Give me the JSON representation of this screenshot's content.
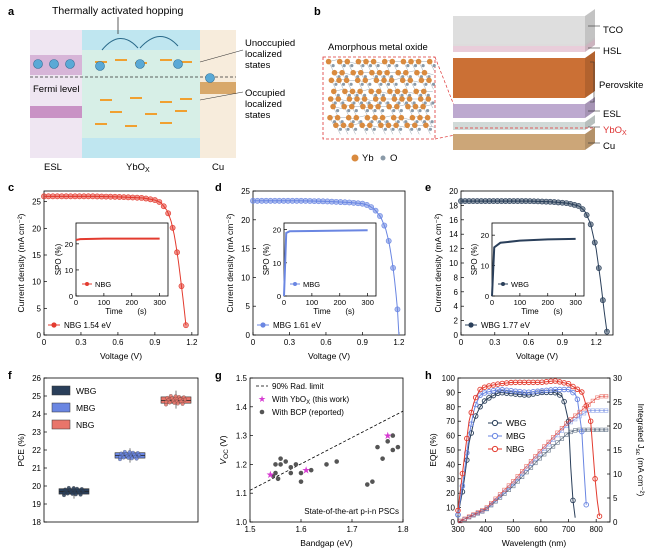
{
  "panel_letters": [
    "a",
    "b",
    "c",
    "d",
    "e",
    "f",
    "g",
    "h"
  ],
  "panel_a": {
    "title": "Thermally activated hopping",
    "label_unoccupied": [
      "Unoccupied",
      "localized",
      "states"
    ],
    "label_occupied": [
      "Occupied",
      "localized",
      "states"
    ],
    "fermi_label": "Fermi level",
    "bottom_labels": [
      "ESL",
      "YbO",
      "X",
      "Cu"
    ],
    "colors": {
      "esl": "#ede3f0",
      "ybo": "#d9eee8",
      "cu": "#f6eadb",
      "electron": "#5aa9d6",
      "state": "#f0a030"
    }
  },
  "panel_b": {
    "inset_title": "Amorphous metal oxide",
    "legend": [
      {
        "label": "Yb",
        "color": "#d98a3e"
      },
      {
        "label": "O",
        "color": "#8a9aa8"
      }
    ],
    "layers": [
      {
        "label": "TCO",
        "color": "#dcdcdc"
      },
      {
        "label": "HSL",
        "color": "#e8cad8"
      },
      {
        "label": "Perovskite",
        "color": "#c8682a"
      },
      {
        "label": "ESL",
        "color": "#b9a4cc"
      },
      {
        "label": "YbO",
        "sub": "X",
        "color": "#cfd8d6"
      },
      {
        "label": "Cu",
        "color": "#c9a171"
      }
    ]
  },
  "chart_data": [
    {
      "panel": "c",
      "type": "line",
      "xlabel": "Voltage (V)",
      "ylabel": "Current density (mA cm⁻²)",
      "xlim": [
        0,
        1.25
      ],
      "ylim": [
        0,
        27
      ],
      "xticks": [
        0,
        0.3,
        0.6,
        0.9,
        1.2
      ],
      "yticks": [
        0,
        5,
        10,
        15,
        20,
        25
      ],
      "series": [
        {
          "name": "NBG 1.54 eV",
          "color": "#e33b2f",
          "x": [
            0,
            0.2,
            0.4,
            0.6,
            0.8,
            0.9,
            0.95,
            1.0,
            1.03,
            1.06,
            1.09,
            1.11,
            1.13,
            1.15,
            1.16
          ],
          "y": [
            26,
            26,
            26,
            25.9,
            25.7,
            25.3,
            24.8,
            23.3,
            21.5,
            18.5,
            14,
            10.3,
            6.5,
            2.3,
            0
          ]
        }
      ],
      "inset": {
        "xlabel": "Time",
        "xunit": "(s)",
        "ylabel": "SPO (%)",
        "xlim": [
          0,
          330
        ],
        "ylim": [
          0,
          28
        ],
        "xticks": [
          0,
          100,
          200,
          300
        ],
        "yticks": [
          0,
          10,
          20
        ],
        "legend": "NBG",
        "x": [
          0,
          15,
          100,
          200,
          300
        ],
        "y": [
          21.5,
          21.8,
          22,
          22,
          22
        ]
      }
    },
    {
      "panel": "d",
      "type": "line",
      "xlabel": "Voltage (V)",
      "ylabel": "Current density (mA cm⁻²)",
      "xlim": [
        0,
        1.25
      ],
      "ylim": [
        0,
        25
      ],
      "xticks": [
        0,
        0.3,
        0.6,
        0.9,
        1.2
      ],
      "yticks": [
        0,
        5,
        10,
        15,
        20,
        25
      ],
      "series": [
        {
          "name": "MBG 1.61 eV",
          "color": "#6a86e2",
          "x": [
            0,
            0.2,
            0.4,
            0.6,
            0.8,
            0.9,
            0.95,
            1.0,
            1.05,
            1.09,
            1.12,
            1.15,
            1.17,
            1.19,
            1.2
          ],
          "y": [
            23.3,
            23.3,
            23.3,
            23.2,
            23,
            22.8,
            22.5,
            21.8,
            20.5,
            18.5,
            16,
            12,
            8.5,
            4,
            0
          ]
        }
      ],
      "inset": {
        "xlabel": "Time",
        "xunit": "(s)",
        "ylabel": "SPO (%)",
        "xlim": [
          0,
          330
        ],
        "ylim": [
          0,
          22
        ],
        "xticks": [
          0,
          100,
          200,
          300
        ],
        "yticks": [
          0,
          10,
          20
        ],
        "legend": "MBG",
        "x": [
          0,
          8,
          20,
          100,
          200,
          300
        ],
        "y": [
          0,
          19,
          19.5,
          19.6,
          19.7,
          19.8
        ]
      }
    },
    {
      "panel": "e",
      "type": "line",
      "xlabel": "Voltage (V)",
      "ylabel": "Current density (mA cm⁻²)",
      "xlim": [
        0,
        1.35
      ],
      "ylim": [
        0,
        20
      ],
      "xticks": [
        0,
        0.3,
        0.6,
        0.9,
        1.2
      ],
      "yticks": [
        0,
        2,
        4,
        6,
        8,
        10,
        12,
        14,
        16,
        18,
        20
      ],
      "series": [
        {
          "name": "WBG 1.77 eV",
          "color": "#2a3f5a",
          "x": [
            0,
            0.2,
            0.4,
            0.6,
            0.8,
            0.95,
            1.05,
            1.1,
            1.15,
            1.2,
            1.24,
            1.27,
            1.3
          ],
          "y": [
            18.6,
            18.6,
            18.6,
            18.6,
            18.5,
            18.3,
            17.9,
            17.2,
            15.5,
            12,
            7.5,
            3.5,
            0
          ]
        }
      ],
      "inset": {
        "xlabel": "Time",
        "xunit": "(s)",
        "ylabel": "SPO (%)",
        "xlim": [
          0,
          330
        ],
        "ylim": [
          0,
          24
        ],
        "xticks": [
          0,
          100,
          200,
          300
        ],
        "yticks": [
          0,
          10,
          20
        ],
        "legend": "WBG",
        "x": [
          0,
          8,
          30,
          100,
          200,
          300
        ],
        "y": [
          0,
          16,
          17.5,
          18.2,
          18.6,
          18.8
        ]
      }
    },
    {
      "panel": "f",
      "type": "box",
      "ylabel": "PCE (%)",
      "ylim": [
        18,
        26
      ],
      "yticks": [
        18,
        19,
        20,
        21,
        22,
        23,
        24,
        25,
        26
      ],
      "legend": [
        "WBG",
        "MBG",
        "NBG"
      ],
      "series": [
        {
          "name": "WBG",
          "color": "#2a3f5a",
          "min": 19.3,
          "q1": 19.55,
          "median": 19.7,
          "q3": 19.85,
          "max": 20.0
        },
        {
          "name": "MBG",
          "color": "#6a86e2",
          "min": 21.3,
          "q1": 21.55,
          "median": 21.7,
          "q3": 21.85,
          "max": 22.1
        },
        {
          "name": "NBG",
          "color": "#e8756a",
          "min": 24.3,
          "q1": 24.6,
          "median": 24.75,
          "q3": 24.95,
          "max": 25.3
        }
      ]
    },
    {
      "panel": "g",
      "type": "scatter",
      "xlabel": "Bandgap (eV)",
      "ylabel": "V",
      "ylabel_sub": "OC",
      "ylabel_unit": "(V)",
      "xlim": [
        1.5,
        1.8
      ],
      "ylim": [
        1.0,
        1.5
      ],
      "xticks": [
        1.5,
        1.6,
        1.7,
        1.8
      ],
      "yticks": [
        1.0,
        1.1,
        1.2,
        1.3,
        1.4,
        1.5
      ],
      "legend": [
        "90% Rad. limit",
        "With YbO",
        "(this work)",
        "With BCP (reported)"
      ],
      "legend_sub": "X",
      "annotation": "State-of-the-art p-i-n PSCs",
      "limit_line": {
        "x": [
          1.5,
          1.8
        ],
        "y": [
          1.11,
          1.385
        ]
      },
      "this_work": {
        "x": [
          1.54,
          1.61,
          1.77
        ],
        "y": [
          1.165,
          1.18,
          1.3
        ]
      },
      "reported": {
        "x": [
          1.545,
          1.55,
          1.55,
          1.555,
          1.56,
          1.56,
          1.57,
          1.58,
          1.58,
          1.59,
          1.6,
          1.6,
          1.62,
          1.65,
          1.67,
          1.73,
          1.74,
          1.75,
          1.76,
          1.77,
          1.78,
          1.78,
          1.79
        ],
        "y": [
          1.16,
          1.17,
          1.2,
          1.15,
          1.2,
          1.22,
          1.21,
          1.17,
          1.19,
          1.2,
          1.17,
          1.14,
          1.18,
          1.2,
          1.21,
          1.13,
          1.14,
          1.26,
          1.22,
          1.28,
          1.25,
          1.3,
          1.26
        ]
      }
    },
    {
      "panel": "h",
      "type": "line",
      "xlabel": "Wavelength (nm)",
      "ylabel": "EQE (%)",
      "y2label": "Integrated J",
      "y2label_sub": "sc",
      "y2label_unit": "(mA cm⁻²)",
      "xlim": [
        300,
        850
      ],
      "ylim": [
        0,
        100
      ],
      "y2lim": [
        0,
        30
      ],
      "xticks": [
        300,
        400,
        500,
        600,
        700,
        800
      ],
      "yticks": [
        0,
        10,
        20,
        30,
        40,
        50,
        60,
        70,
        80,
        90,
        100
      ],
      "y2ticks": [
        0,
        5,
        10,
        15,
        20,
        25,
        30
      ],
      "legend": [
        "WBG",
        "MBG",
        "NBG"
      ],
      "series": [
        {
          "name": "WBG",
          "color": "#2a3f5a",
          "x": [
            300,
            320,
            340,
            360,
            380,
            400,
            450,
            500,
            550,
            600,
            650,
            680,
            700,
            710,
            720,
            730
          ],
          "y": [
            5,
            25,
            55,
            72,
            80,
            85,
            90,
            89,
            88,
            90,
            90,
            87,
            70,
            30,
            5,
            0
          ],
          "jsc_x": [
            300,
            400,
            500,
            600,
            700,
            730,
            850
          ],
          "jsc_y": [
            0,
            2.5,
            7.5,
            13.5,
            18.6,
            19.2,
            19.2
          ]
        },
        {
          "name": "MBG",
          "color": "#6a86e2",
          "x": [
            300,
            320,
            340,
            360,
            380,
            400,
            450,
            500,
            550,
            600,
            650,
            700,
            730,
            750,
            760,
            770
          ],
          "y": [
            5,
            30,
            60,
            80,
            88,
            90,
            92,
            91,
            90,
            91,
            92,
            92,
            88,
            60,
            20,
            0
          ],
          "jsc_x": [
            300,
            400,
            500,
            600,
            700,
            770,
            850
          ],
          "jsc_y": [
            0,
            2.6,
            8,
            14.5,
            20.5,
            23.2,
            23.2
          ]
        },
        {
          "name": "NBG",
          "color": "#e33b2f",
          "x": [
            300,
            320,
            340,
            360,
            380,
            400,
            450,
            500,
            550,
            600,
            650,
            700,
            750,
            780,
            800,
            815
          ],
          "y": [
            8,
            40,
            70,
            85,
            92,
            94,
            96,
            97,
            97,
            97,
            98,
            96,
            90,
            70,
            20,
            0
          ],
          "jsc_x": [
            300,
            400,
            500,
            600,
            700,
            800,
            815,
            850
          ],
          "jsc_y": [
            0,
            2.8,
            8.5,
            15,
            21,
            25.8,
            26.2,
            26.2
          ]
        }
      ]
    }
  ]
}
